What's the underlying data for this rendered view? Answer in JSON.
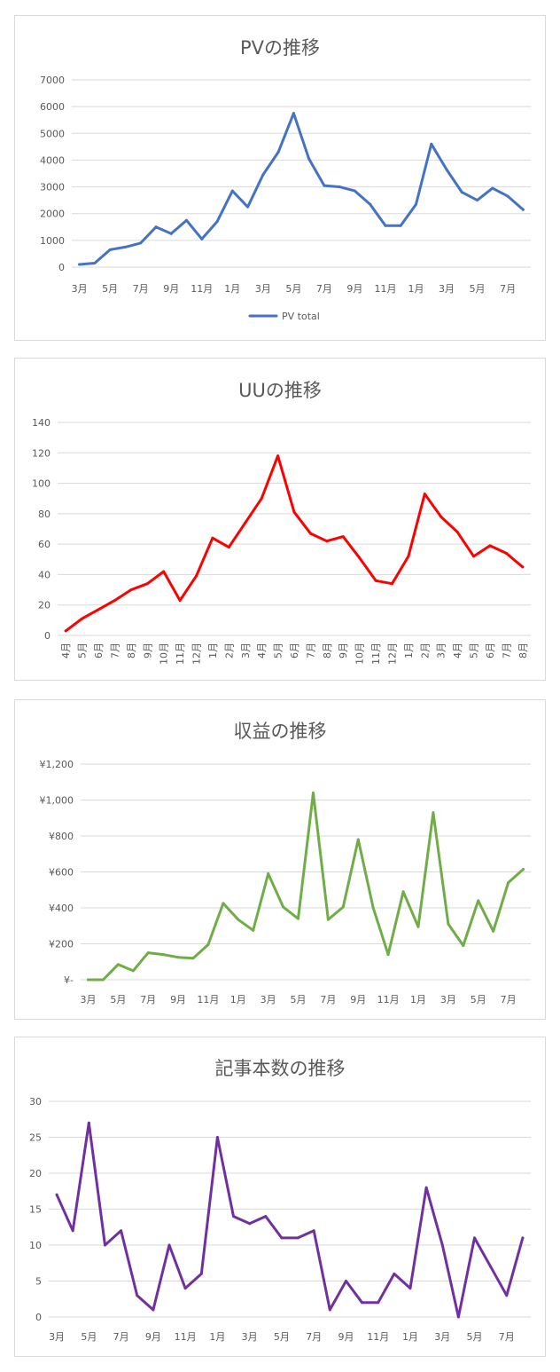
{
  "chart_data": [
    {
      "type": "line",
      "title": "PVの推移",
      "color": "#4472c4",
      "ylim": [
        0,
        7000
      ],
      "yticks": [
        0,
        1000,
        2000,
        3000,
        4000,
        5000,
        6000,
        7000
      ],
      "ytick_labels": [
        "0",
        "1000",
        "2000",
        "3000",
        "4000",
        "5000",
        "6000",
        "7000"
      ],
      "x": [
        "3月",
        "4月",
        "5月",
        "6月",
        "7月",
        "8月",
        "9月",
        "10月",
        "11月",
        "12月",
        "1月",
        "2月",
        "3月",
        "4月",
        "5月",
        "6月",
        "7月",
        "8月",
        "9月",
        "10月",
        "11月",
        "12月",
        "1月",
        "2月",
        "3月",
        "4月",
        "5月",
        "6月",
        "7月",
        "8月"
      ],
      "x_tick_labels": [
        "3月",
        "5月",
        "7月",
        "9月",
        "11月",
        "1月",
        "3月",
        "5月",
        "7月",
        "9月",
        "11月",
        "1月",
        "3月",
        "5月",
        "7月"
      ],
      "series": [
        {
          "name": "PV total",
          "values": [
            100,
            150,
            650,
            750,
            900,
            1500,
            1250,
            1750,
            1050,
            1700,
            2850,
            2250,
            3450,
            4300,
            5750,
            4050,
            3050,
            3000,
            2850,
            2350,
            1550,
            1550,
            2350,
            4600,
            3650,
            2800,
            2500,
            2950,
            2650,
            2150
          ]
        }
      ],
      "legend": "bottom",
      "grid": true
    },
    {
      "type": "line",
      "title": "UUの推移",
      "color": "#ff0000",
      "ylim": [
        0,
        140
      ],
      "yticks": [
        0,
        20,
        40,
        60,
        80,
        100,
        120,
        140
      ],
      "ytick_labels": [
        "0",
        "20",
        "40",
        "60",
        "80",
        "100",
        "120",
        "140"
      ],
      "x": [
        "4月",
        "5月",
        "6月",
        "7月",
        "8月",
        "9月",
        "10月",
        "11月",
        "12月",
        "1月",
        "2月",
        "3月",
        "4月",
        "5月",
        "6月",
        "7月",
        "8月",
        "9月",
        "10月",
        "11月",
        "12月",
        "1月",
        "2月",
        "3月",
        "4月",
        "5月",
        "6月",
        "7月",
        "8月"
      ],
      "x_tick_labels": [
        "4月",
        "5月",
        "6月",
        "7月",
        "8月",
        "9月",
        "10月",
        "11月",
        "12月",
        "1月",
        "2月",
        "3月",
        "4月",
        "5月",
        "6月",
        "7月",
        "8月",
        "9月",
        "10月",
        "11月",
        "12月",
        "1月",
        "2月",
        "3月",
        "4月",
        "5月",
        "6月",
        "7月",
        "8月"
      ],
      "series": [
        {
          "values": [
            3,
            11,
            17,
            23,
            30,
            34,
            42,
            23,
            39,
            64,
            58,
            74,
            90,
            118,
            81,
            67,
            62,
            65,
            51,
            36,
            34,
            52,
            93,
            78,
            68,
            52,
            59,
            54,
            45
          ]
        }
      ],
      "grid": true
    },
    {
      "type": "line",
      "title": "収益の推移",
      "color": "#70ad47",
      "ylim": [
        0,
        1200
      ],
      "yticks": [
        0,
        200,
        400,
        600,
        800,
        1000,
        1200
      ],
      "ytick_labels": [
        "¥-",
        "¥200",
        "¥400",
        "¥600",
        "¥800",
        "¥1,000",
        "¥1,200"
      ],
      "x": [
        "3月",
        "4月",
        "5月",
        "6月",
        "7月",
        "8月",
        "9月",
        "10月",
        "11月",
        "12月",
        "1月",
        "2月",
        "3月",
        "4月",
        "5月",
        "6月",
        "7月",
        "8月",
        "9月",
        "10月",
        "11月",
        "12月",
        "1月",
        "2月",
        "3月",
        "4月",
        "5月",
        "6月",
        "7月",
        "8月"
      ],
      "x_tick_labels": [
        "3月",
        "5月",
        "7月",
        "9月",
        "11月",
        "1月",
        "3月",
        "5月",
        "7月",
        "9月",
        "11月",
        "1月",
        "3月",
        "5月",
        "7月"
      ],
      "series": [
        {
          "values": [
            0,
            0,
            85,
            50,
            150,
            140,
            125,
            120,
            195,
            425,
            335,
            275,
            590,
            405,
            340,
            1040,
            335,
            405,
            780,
            400,
            140,
            490,
            295,
            930,
            310,
            190,
            440,
            270,
            540,
            615
          ]
        }
      ],
      "grid": true
    },
    {
      "type": "line",
      "title": "記事本数の推移",
      "color": "#7030a0",
      "ylim": [
        0,
        30
      ],
      "yticks": [
        0,
        5,
        10,
        15,
        20,
        25,
        30
      ],
      "ytick_labels": [
        "0",
        "5",
        "10",
        "15",
        "20",
        "25",
        "30"
      ],
      "x": [
        "3月",
        "4月",
        "5月",
        "6月",
        "7月",
        "8月",
        "9月",
        "10月",
        "11月",
        "12月",
        "1月",
        "2月",
        "3月",
        "4月",
        "5月",
        "6月",
        "7月",
        "8月",
        "9月",
        "10月",
        "11月",
        "12月",
        "1月",
        "2月",
        "3月",
        "4月",
        "5月",
        "6月",
        "7月",
        "8月"
      ],
      "x_tick_labels": [
        "3月",
        "5月",
        "7月",
        "9月",
        "11月",
        "1月",
        "3月",
        "5月",
        "7月",
        "9月",
        "11月",
        "1月",
        "3月",
        "5月",
        "7月"
      ],
      "series": [
        {
          "values": [
            17,
            12,
            27,
            10,
            12,
            3,
            1,
            10,
            4,
            6,
            25,
            14,
            13,
            14,
            11,
            11,
            12,
            1,
            5,
            2,
            2,
            6,
            4,
            18,
            10,
            0,
            11,
            7,
            3,
            11
          ]
        }
      ],
      "grid": true
    }
  ]
}
